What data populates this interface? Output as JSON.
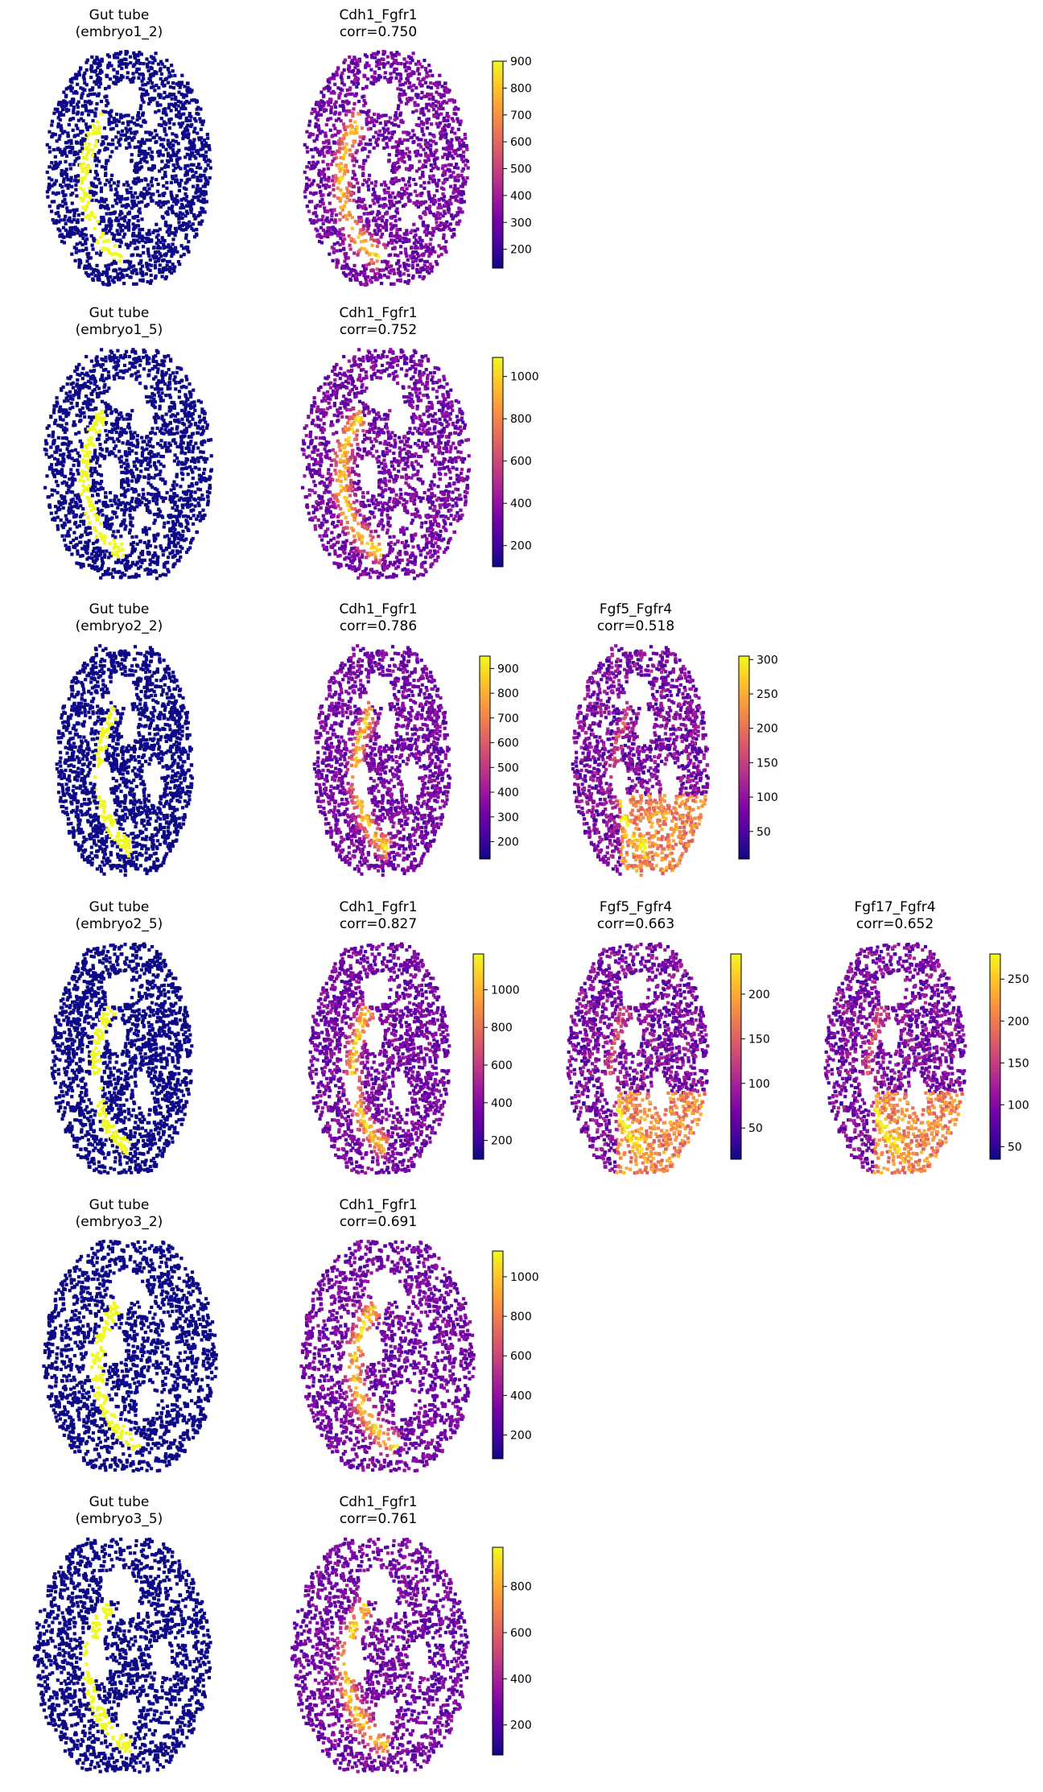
{
  "colors": {
    "plasma": [
      "#0d0887",
      "#46039f",
      "#7201a8",
      "#9c179e",
      "#bd3786",
      "#d8576b",
      "#ed7953",
      "#fb9f3a",
      "#fdca26",
      "#f0f921"
    ],
    "mask_background": "#0d0887",
    "mask_highlight": "#f0f921"
  },
  "chart_data": [
    {
      "type": "scatter",
      "subtype": "spatial-mask",
      "title": [
        "Gut tube",
        "(embryo1_2)"
      ],
      "colormap": "binary-plasma"
    },
    {
      "type": "scatter",
      "subtype": "spatial-expression",
      "title": [
        "Cdh1_Fgfr1",
        "corr=0.750"
      ],
      "colormap": "plasma",
      "colorbar_range": [
        130,
        900
      ],
      "colorbar_ticks": [
        200,
        300,
        400,
        500,
        600,
        700,
        800,
        900
      ]
    },
    {
      "type": "scatter",
      "subtype": "spatial-mask",
      "title": [
        "Gut tube",
        "(embryo1_5)"
      ],
      "colormap": "binary-plasma"
    },
    {
      "type": "scatter",
      "subtype": "spatial-expression",
      "title": [
        "Cdh1_Fgfr1",
        "corr=0.752"
      ],
      "colormap": "plasma",
      "colorbar_range": [
        100,
        1090
      ],
      "colorbar_ticks": [
        200,
        400,
        600,
        800,
        1000
      ]
    },
    {
      "type": "scatter",
      "subtype": "spatial-mask",
      "title": [
        "Gut tube",
        "(embryo2_2)"
      ],
      "colormap": "binary-plasma"
    },
    {
      "type": "scatter",
      "subtype": "spatial-expression",
      "title": [
        "Cdh1_Fgfr1",
        "corr=0.786"
      ],
      "colormap": "plasma",
      "colorbar_range": [
        130,
        950
      ],
      "colorbar_ticks": [
        200,
        300,
        400,
        500,
        600,
        700,
        800,
        900
      ]
    },
    {
      "type": "scatter",
      "subtype": "spatial-expression",
      "title": [
        "Fgf5_Fgfr4",
        "corr=0.518"
      ],
      "colormap": "plasma",
      "colorbar_range": [
        10,
        305
      ],
      "colorbar_ticks": [
        50,
        100,
        150,
        200,
        250,
        300
      ]
    },
    {
      "type": "scatter",
      "subtype": "spatial-mask",
      "title": [
        "Gut tube",
        "(embryo2_5)"
      ],
      "colormap": "binary-plasma"
    },
    {
      "type": "scatter",
      "subtype": "spatial-expression",
      "title": [
        "Cdh1_Fgfr1",
        "corr=0.827"
      ],
      "colormap": "plasma",
      "colorbar_range": [
        100,
        1190
      ],
      "colorbar_ticks": [
        200,
        400,
        600,
        800,
        1000
      ]
    },
    {
      "type": "scatter",
      "subtype": "spatial-expression",
      "title": [
        "Fgf5_Fgfr4",
        "corr=0.663"
      ],
      "colormap": "plasma",
      "colorbar_range": [
        15,
        245
      ],
      "colorbar_ticks": [
        50,
        100,
        150,
        200
      ]
    },
    {
      "type": "scatter",
      "subtype": "spatial-expression",
      "title": [
        "Fgf17_Fgfr4",
        "corr=0.652"
      ],
      "colormap": "plasma",
      "colorbar_range": [
        35,
        280
      ],
      "colorbar_ticks": [
        50,
        100,
        150,
        200,
        250
      ]
    },
    {
      "type": "scatter",
      "subtype": "spatial-mask",
      "title": [
        "Gut tube",
        "(embryo3_2)"
      ],
      "colormap": "binary-plasma"
    },
    {
      "type": "scatter",
      "subtype": "spatial-expression",
      "title": [
        "Cdh1_Fgfr1",
        "corr=0.691"
      ],
      "colormap": "plasma",
      "colorbar_range": [
        80,
        1130
      ],
      "colorbar_ticks": [
        200,
        400,
        600,
        800,
        1000
      ]
    },
    {
      "type": "scatter",
      "subtype": "spatial-mask",
      "title": [
        "Gut tube",
        "(embryo3_5)"
      ],
      "colormap": "binary-plasma"
    },
    {
      "type": "scatter",
      "subtype": "spatial-expression",
      "title": [
        "Cdh1_Fgfr1",
        "corr=0.761"
      ],
      "colormap": "plasma",
      "colorbar_range": [
        70,
        970
      ],
      "colorbar_ticks": [
        200,
        400,
        600,
        800
      ]
    }
  ]
}
